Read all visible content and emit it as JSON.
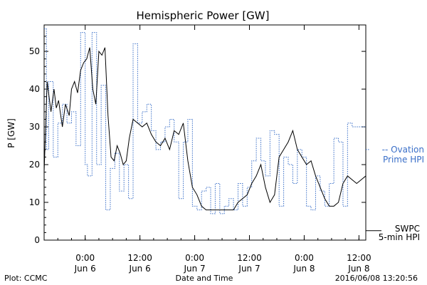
{
  "chart_data": {
    "type": "line",
    "title": "Hemispheric Power [GW]",
    "ylabel": "P [GW]",
    "xlabel": "Date and Time",
    "xlim": [
      "2016-06-05T15:00",
      "2016-06-08T13:30"
    ],
    "ylim": [
      0,
      57
    ],
    "y_ticks": [
      0,
      10,
      20,
      30,
      40,
      50
    ],
    "x_ticks": [
      {
        "t": "2016-06-06T00:00",
        "time": "0:00",
        "date": "Jun 6"
      },
      {
        "t": "2016-06-06T12:00",
        "time": "12:00",
        "date": "Jun 6"
      },
      {
        "t": "2016-06-07T00:00",
        "time": "0:00",
        "date": "Jun 7"
      },
      {
        "t": "2016-06-07T12:00",
        "time": "12:00",
        "date": "Jun 7"
      },
      {
        "t": "2016-06-08T00:00",
        "time": "0:00",
        "date": "Jun 8"
      },
      {
        "t": "2016-06-08T12:00",
        "time": "12:00",
        "date": "Jun 8"
      }
    ],
    "grid": false,
    "legend_position": "right",
    "series": [
      {
        "name": "Ovation Prime HPI",
        "legend_label": [
          "-- Ovation",
          "Prime HPI"
        ],
        "color": "#3a6fc8",
        "style": "dotted-step",
        "x": [
          "2016-06-05T15:00",
          "2016-06-05T15:30",
          "2016-06-05T16:00",
          "2016-06-05T17:00",
          "2016-06-05T18:00",
          "2016-06-05T19:00",
          "2016-06-05T20:00",
          "2016-06-05T21:00",
          "2016-06-05T22:00",
          "2016-06-05T23:00",
          "2016-06-06T00:00",
          "2016-06-06T00:30",
          "2016-06-06T01:30",
          "2016-06-06T02:30",
          "2016-06-06T03:30",
          "2016-06-06T04:30",
          "2016-06-06T05:30",
          "2016-06-06T06:30",
          "2016-06-06T07:30",
          "2016-06-06T08:30",
          "2016-06-06T09:30",
          "2016-06-06T10:30",
          "2016-06-06T11:30",
          "2016-06-06T12:30",
          "2016-06-06T13:30",
          "2016-06-06T14:30",
          "2016-06-06T15:30",
          "2016-06-06T16:30",
          "2016-06-06T17:30",
          "2016-06-06T18:30",
          "2016-06-06T19:30",
          "2016-06-06T20:30",
          "2016-06-06T21:30",
          "2016-06-06T22:30",
          "2016-06-06T23:30",
          "2016-06-07T00:30",
          "2016-06-07T01:30",
          "2016-06-07T02:30",
          "2016-06-07T03:30",
          "2016-06-07T04:30",
          "2016-06-07T05:30",
          "2016-06-07T06:30",
          "2016-06-07T07:30",
          "2016-06-07T08:30",
          "2016-06-07T09:30",
          "2016-06-07T10:30",
          "2016-06-07T11:30",
          "2016-06-07T12:30",
          "2016-06-07T13:30",
          "2016-06-07T14:30",
          "2016-06-07T15:30",
          "2016-06-07T16:30",
          "2016-06-07T17:30",
          "2016-06-07T18:30",
          "2016-06-07T19:30",
          "2016-06-07T20:30",
          "2016-06-07T21:30",
          "2016-06-07T22:30",
          "2016-06-07T23:30",
          "2016-06-08T00:30",
          "2016-06-08T01:30",
          "2016-06-08T02:30",
          "2016-06-08T03:30",
          "2016-06-08T04:30",
          "2016-06-08T05:30",
          "2016-06-08T06:30",
          "2016-06-08T07:30",
          "2016-06-08T08:30",
          "2016-06-08T09:30",
          "2016-06-08T10:30",
          "2016-06-08T11:30",
          "2016-06-08T12:30",
          "2016-06-08T13:30"
        ],
        "values": [
          56,
          24,
          42,
          22,
          31,
          36,
          31,
          34,
          25,
          55,
          20,
          17,
          55,
          20,
          41,
          8,
          19,
          23,
          13,
          20,
          11,
          52,
          31,
          34,
          36,
          29,
          24,
          26,
          30,
          32,
          26,
          11,
          26,
          32,
          9,
          8,
          13,
          14,
          7,
          15,
          7,
          9,
          11,
          8,
          15,
          9,
          14,
          21,
          27,
          21,
          17,
          29,
          28,
          9,
          22,
          20,
          15,
          24,
          22,
          9,
          8,
          17,
          13,
          9,
          15,
          27,
          26,
          9,
          31,
          30,
          30,
          30,
          30
        ]
      },
      {
        "name": "SWPC 5-min HPI",
        "legend_label": [
          "SWPC",
          "5-min HPI"
        ],
        "color": "#000000",
        "style": "solid",
        "x": [
          "2016-06-05T15:00",
          "2016-06-05T15:40",
          "2016-06-05T16:30",
          "2016-06-05T17:10",
          "2016-06-05T17:40",
          "2016-06-05T18:10",
          "2016-06-05T19:00",
          "2016-06-05T19:40",
          "2016-06-05T20:30",
          "2016-06-05T21:00",
          "2016-06-05T21:40",
          "2016-06-05T22:20",
          "2016-06-05T23:00",
          "2016-06-05T23:40",
          "2016-06-06T00:20",
          "2016-06-06T01:00",
          "2016-06-06T01:40",
          "2016-06-06T02:20",
          "2016-06-06T03:00",
          "2016-06-06T03:40",
          "2016-06-06T04:20",
          "2016-06-06T05:00",
          "2016-06-06T05:40",
          "2016-06-06T06:20",
          "2016-06-06T07:00",
          "2016-06-06T07:40",
          "2016-06-06T08:20",
          "2016-06-06T09:00",
          "2016-06-06T09:40",
          "2016-06-06T10:30",
          "2016-06-06T11:30",
          "2016-06-06T12:30",
          "2016-06-06T13:30",
          "2016-06-06T14:30",
          "2016-06-06T15:30",
          "2016-06-06T16:30",
          "2016-06-06T17:30",
          "2016-06-06T18:30",
          "2016-06-06T19:30",
          "2016-06-06T20:30",
          "2016-06-06T21:30",
          "2016-06-06T22:30",
          "2016-06-06T23:30",
          "2016-06-07T00:30",
          "2016-06-07T01:30",
          "2016-06-07T02:30",
          "2016-06-07T03:30",
          "2016-06-07T04:30",
          "2016-06-07T05:30",
          "2016-06-07T06:30",
          "2016-06-07T07:30",
          "2016-06-07T08:30",
          "2016-06-07T09:30",
          "2016-06-07T10:30",
          "2016-06-07T11:30",
          "2016-06-07T12:30",
          "2016-06-07T13:30",
          "2016-06-07T14:30",
          "2016-06-07T15:30",
          "2016-06-07T16:30",
          "2016-06-07T17:30",
          "2016-06-07T18:30",
          "2016-06-07T19:30",
          "2016-06-07T20:30",
          "2016-06-07T21:30",
          "2016-06-07T22:30",
          "2016-06-07T23:30",
          "2016-06-08T00:30",
          "2016-06-08T01:30",
          "2016-06-08T02:30",
          "2016-06-08T03:30",
          "2016-06-08T04:30",
          "2016-06-08T05:30",
          "2016-06-08T06:30",
          "2016-06-08T07:30",
          "2016-06-08T08:30",
          "2016-06-08T09:30",
          "2016-06-08T10:30",
          "2016-06-08T11:30",
          "2016-06-08T12:30",
          "2016-06-08T13:30"
        ],
        "values": [
          18,
          42,
          34,
          40,
          35,
          37,
          30,
          36,
          33,
          40,
          42,
          39,
          45,
          47,
          48,
          51,
          40,
          36,
          50,
          49,
          51,
          33,
          22,
          21,
          25,
          23,
          20,
          21,
          27,
          32,
          31,
          30,
          31,
          28,
          26,
          25,
          27,
          24,
          29,
          28,
          31,
          21,
          14,
          12,
          9,
          8,
          8,
          8,
          8,
          8,
          8,
          8,
          10,
          11,
          12,
          15,
          17,
          20,
          14,
          10,
          12,
          22,
          24,
          26,
          29,
          24,
          22,
          20,
          21,
          17,
          14,
          11,
          9,
          9,
          10,
          15,
          17,
          16,
          15,
          16,
          17
        ]
      }
    ],
    "footer": {
      "left": "Plot: CCMC",
      "right": "2016/06/08 13:20:56"
    }
  }
}
